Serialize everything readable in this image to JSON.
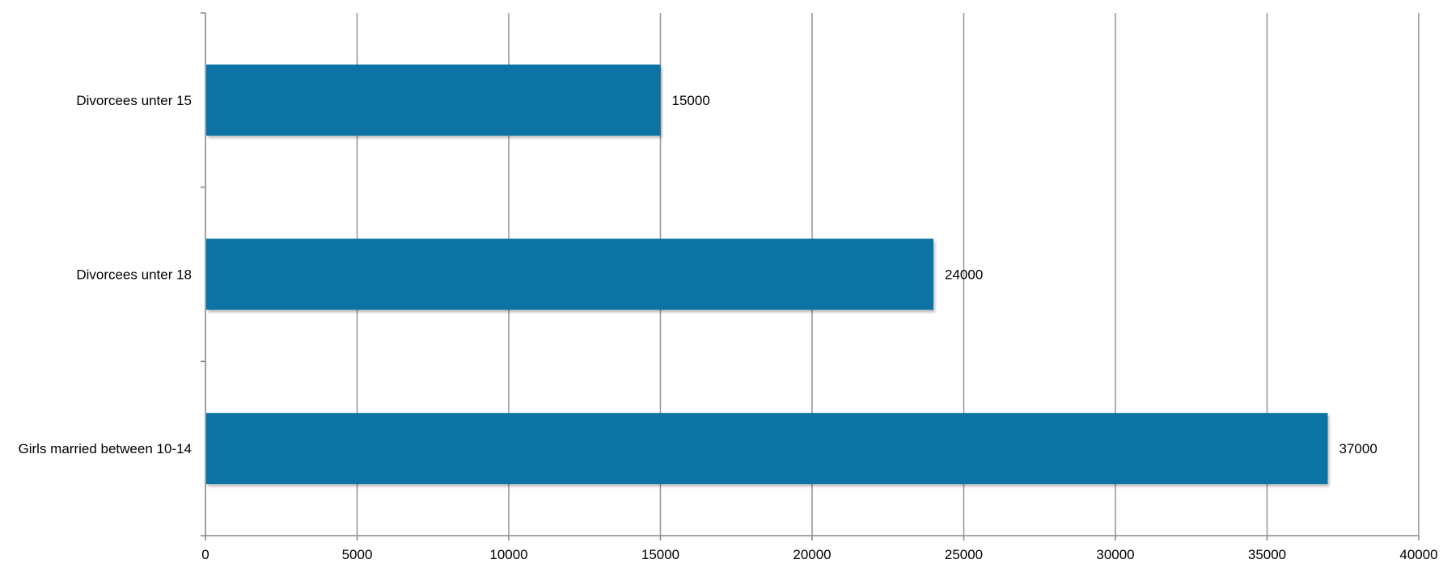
{
  "chart_data": {
    "type": "bar",
    "orientation": "horizontal",
    "title": "",
    "xlabel": "",
    "ylabel": "",
    "categories": [
      "Divorcees unter 15",
      "Divorcees unter 18",
      "Girls married between 10-14"
    ],
    "values": [
      15000,
      24000,
      37000
    ],
    "data_labels": [
      "15000",
      "24000",
      "37000"
    ],
    "xlim": [
      0,
      40000
    ],
    "x_ticks": [
      0,
      5000,
      10000,
      15000,
      20000,
      25000,
      30000,
      35000,
      40000
    ],
    "x_tick_labels": [
      "0",
      "5000",
      "10000",
      "15000",
      "20000",
      "25000",
      "30000",
      "35000",
      "40000"
    ],
    "grid": "vertical",
    "legend": "none",
    "bar_color": "#0872a4"
  }
}
